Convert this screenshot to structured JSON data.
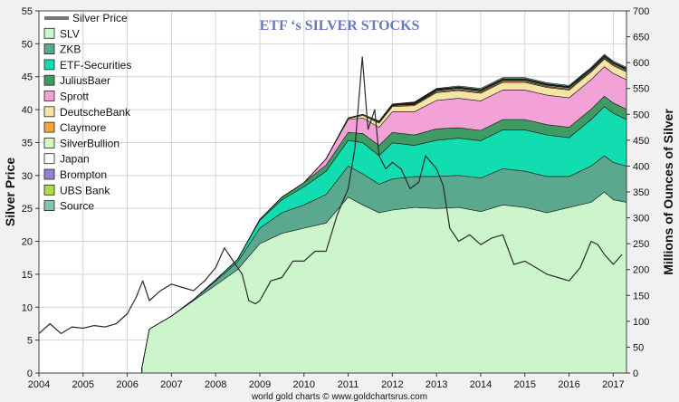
{
  "chart_data": {
    "type": "area",
    "title": "ETF ‘s  SILVER STOCKS",
    "credit": "world gold charts © www.goldchartsrus.com",
    "ylabel_left": "Silver Price",
    "ylabel_right": "Millions of Ounces of Silver",
    "ylim_left": [
      0,
      55
    ],
    "ylim_right": [
      0,
      700
    ],
    "xlim": [
      2004,
      2017.3
    ],
    "yticks_left": [
      0,
      5,
      10,
      15,
      20,
      25,
      30,
      35,
      40,
      45,
      50,
      55
    ],
    "yticks_right": [
      0,
      50,
      100,
      150,
      200,
      250,
      300,
      350,
      400,
      450,
      500,
      550,
      600,
      650,
      700
    ],
    "xticks": [
      "2004",
      "2005",
      "2006",
      "2007",
      "2008",
      "2009",
      "2010",
      "2011",
      "2012",
      "2013",
      "2014",
      "2015",
      "2016",
      "2017"
    ],
    "grid": true,
    "legend_position": "top-left",
    "legend": [
      {
        "label": "Silver Price",
        "color": "#777777",
        "kind": "line"
      },
      {
        "label": "SLV",
        "color": "#ccf5cc",
        "kind": "box"
      },
      {
        "label": "ZKB",
        "color": "#5aa88e",
        "kind": "box"
      },
      {
        "label": "ETF-Securities",
        "color": "#11ddb0",
        "kind": "box"
      },
      {
        "label": "JuliusBaer",
        "color": "#3e9b64",
        "kind": "box"
      },
      {
        "label": "Sprott",
        "color": "#f2a2d6",
        "kind": "box"
      },
      {
        "label": "DeutscheBank",
        "color": "#f6e3a6",
        "kind": "box"
      },
      {
        "label": "Claymore",
        "color": "#f2a83a",
        "kind": "box"
      },
      {
        "label": "SilverBullion",
        "color": "#d6f7c0",
        "kind": "box"
      },
      {
        "label": "Japan",
        "color": "#ffffff",
        "kind": "box"
      },
      {
        "label": "Brompton",
        "color": "#9a7fd6",
        "kind": "box"
      },
      {
        "label": "UBS Bank",
        "color": "#b3d94a",
        "kind": "box"
      },
      {
        "label": "Source",
        "color": "#7fc6b6",
        "kind": "box"
      }
    ],
    "x": [
      2006.33,
      2006.5,
      2007.0,
      2007.5,
      2008.0,
      2008.5,
      2009.0,
      2009.5,
      2010.0,
      2010.5,
      2011.0,
      2011.33,
      2011.7,
      2012.0,
      2012.5,
      2013.0,
      2013.5,
      2014.0,
      2014.5,
      2015.0,
      2015.5,
      2016.0,
      2016.5,
      2016.8,
      2017.0,
      2017.3
    ],
    "series": [
      {
        "name": "SLV",
        "values": [
          10,
          85,
          110,
          140,
          170,
          200,
          250,
          270,
          280,
          290,
          340,
          325,
          310,
          315,
          320,
          318,
          320,
          312,
          325,
          320,
          310,
          320,
          330,
          350,
          335,
          330
        ]
      },
      {
        "name": "ZKB",
        "values": [
          0,
          0,
          0,
          2,
          8,
          15,
          30,
          40,
          45,
          55,
          60,
          60,
          55,
          60,
          60,
          62,
          62,
          65,
          70,
          70,
          70,
          60,
          70,
          70,
          72,
          70
        ]
      },
      {
        "name": "ETF-Securities",
        "values": [
          0,
          0,
          0,
          0,
          2,
          5,
          15,
          25,
          35,
          45,
          50,
          60,
          55,
          70,
          60,
          70,
          72,
          72,
          75,
          80,
          80,
          75,
          90,
          95,
          95,
          90
        ]
      },
      {
        "name": "JuliusBaer",
        "values": [
          0,
          0,
          0,
          0,
          0,
          0,
          2,
          5,
          8,
          12,
          15,
          18,
          20,
          20,
          20,
          22,
          20,
          20,
          20,
          20,
          20,
          20,
          20,
          20,
          20,
          20
        ]
      },
      {
        "name": "Sprott",
        "values": [
          0,
          0,
          0,
          0,
          0,
          0,
          0,
          0,
          0,
          12,
          25,
          30,
          35,
          40,
          45,
          55,
          57,
          57,
          57,
          57,
          57,
          57,
          57,
          57,
          57,
          57
        ]
      },
      {
        "name": "DeutscheBank",
        "values": [
          0,
          0,
          0,
          0,
          0,
          0,
          0,
          0,
          0,
          0,
          2,
          5,
          8,
          10,
          12,
          15,
          15,
          15,
          15,
          15,
          15,
          15,
          15,
          15,
          15,
          15
        ]
      },
      {
        "name": "Claymore",
        "values": [
          0,
          0,
          0,
          0,
          0,
          0,
          0,
          0,
          0,
          0,
          1,
          2,
          2,
          2,
          2,
          2,
          2,
          2,
          2,
          2,
          2,
          2,
          2,
          2,
          2,
          2
        ]
      },
      {
        "name": "SilverBullion",
        "values": [
          0,
          0,
          0,
          0,
          0,
          0,
          0,
          0,
          0,
          0,
          0,
          0,
          0,
          1,
          1,
          2,
          2,
          2,
          2,
          2,
          2,
          2,
          2,
          2,
          2,
          2
        ]
      },
      {
        "name": "Japan",
        "values": [
          0,
          0,
          0,
          0,
          0,
          0,
          0,
          0,
          0,
          0,
          0,
          0,
          1,
          1,
          1,
          1,
          1,
          1,
          1,
          1,
          1,
          1,
          1,
          1,
          1,
          1
        ]
      },
      {
        "name": "Brompton",
        "values": [
          0,
          0,
          0,
          0,
          0,
          0,
          0,
          0,
          0,
          0,
          0,
          0,
          0,
          0,
          1,
          1,
          1,
          1,
          1,
          1,
          1,
          1,
          1,
          1,
          1,
          1
        ]
      },
      {
        "name": "UBS Bank",
        "values": [
          0,
          0,
          0,
          0,
          0,
          0,
          0,
          0,
          0,
          0,
          0,
          0,
          1,
          1,
          1,
          1,
          1,
          1,
          1,
          1,
          1,
          1,
          1,
          1,
          1,
          1
        ]
      },
      {
        "name": "Source",
        "values": [
          0,
          0,
          0,
          0,
          0,
          0,
          0,
          0,
          0,
          0,
          0,
          0,
          0,
          0,
          1,
          1,
          2,
          2,
          2,
          2,
          2,
          2,
          2,
          2,
          2,
          2
        ]
      }
    ],
    "silver_price": {
      "x": [
        2004.0,
        2004.25,
        2004.5,
        2004.75,
        2005.0,
        2005.25,
        2005.5,
        2005.75,
        2006.0,
        2006.2,
        2006.35,
        2006.5,
        2006.75,
        2007.0,
        2007.25,
        2007.5,
        2007.75,
        2008.0,
        2008.2,
        2008.4,
        2008.6,
        2008.75,
        2008.9,
        2009.0,
        2009.25,
        2009.5,
        2009.75,
        2010.0,
        2010.25,
        2010.5,
        2010.75,
        2011.0,
        2011.15,
        2011.32,
        2011.45,
        2011.6,
        2011.7,
        2011.85,
        2012.0,
        2012.2,
        2012.4,
        2012.6,
        2012.75,
        2013.0,
        2013.15,
        2013.3,
        2013.5,
        2013.75,
        2014.0,
        2014.25,
        2014.5,
        2014.75,
        2015.0,
        2015.25,
        2015.5,
        2015.75,
        2016.0,
        2016.25,
        2016.5,
        2016.65,
        2016.8,
        2017.0,
        2017.2
      ],
      "values": [
        6.0,
        7.5,
        6.0,
        7.0,
        6.8,
        7.2,
        7.0,
        7.5,
        9.0,
        11.5,
        14.0,
        11.0,
        12.5,
        13.5,
        13.0,
        12.5,
        14.0,
        16.0,
        19.0,
        17.0,
        15.0,
        11.0,
        10.5,
        11.0,
        14.0,
        14.5,
        17.0,
        17.0,
        18.5,
        18.5,
        24.0,
        28.0,
        34.0,
        48.0,
        37.0,
        40.0,
        33.0,
        31.0,
        32.0,
        31.0,
        28.0,
        29.0,
        33.0,
        31.0,
        28.5,
        22.0,
        20.0,
        21.0,
        19.5,
        20.5,
        21.0,
        16.5,
        17.0,
        16.0,
        15.0,
        14.5,
        14.0,
        16.0,
        20.0,
        19.5,
        18.0,
        16.5,
        18.0
      ]
    }
  }
}
